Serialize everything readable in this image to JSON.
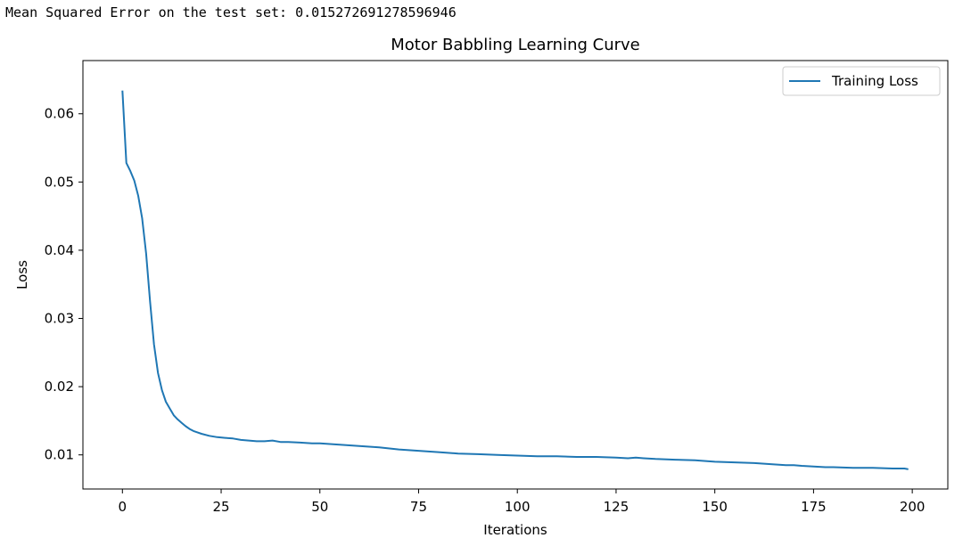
{
  "console": {
    "output": "Mean Squared Error on the test set: 0.015272691278596946"
  },
  "chart_data": {
    "type": "line",
    "title": "Motor Babbling Learning Curve",
    "xlabel": "Iterations",
    "ylabel": "Loss",
    "xlim": [
      -10,
      209
    ],
    "ylim": [
      0.005,
      0.0678
    ],
    "xticks": [
      0,
      25,
      50,
      75,
      100,
      125,
      150,
      175,
      200
    ],
    "yticks": [
      0.01,
      0.02,
      0.03,
      0.04,
      0.05,
      0.06
    ],
    "ytick_labels": [
      "0.01",
      "0.02",
      "0.03",
      "0.04",
      "0.05",
      "0.06"
    ],
    "grid": false,
    "legend_position": "top-right",
    "series": [
      {
        "name": "Training Loss",
        "color": "#1f77b4",
        "x": [
          0,
          1,
          2,
          3,
          4,
          5,
          6,
          7,
          8,
          9,
          10,
          11,
          12,
          13,
          14,
          15,
          16,
          17,
          18,
          19,
          20,
          22,
          24,
          26,
          28,
          30,
          32,
          34,
          36,
          38,
          40,
          42,
          45,
          48,
          50,
          55,
          60,
          65,
          70,
          75,
          80,
          85,
          90,
          95,
          100,
          105,
          110,
          115,
          120,
          125,
          128,
          130,
          132,
          135,
          140,
          145,
          150,
          155,
          160,
          165,
          168,
          170,
          172,
          175,
          178,
          180,
          185,
          190,
          195,
          198,
          199
        ],
        "values": [
          0.0634,
          0.0528,
          0.0516,
          0.0502,
          0.048,
          0.0447,
          0.0395,
          0.0325,
          0.0262,
          0.022,
          0.0195,
          0.0178,
          0.0168,
          0.0158,
          0.0152,
          0.0147,
          0.0142,
          0.0138,
          0.0135,
          0.0133,
          0.0131,
          0.0128,
          0.0126,
          0.0125,
          0.0124,
          0.0122,
          0.0121,
          0.012,
          0.012,
          0.0121,
          0.0119,
          0.0119,
          0.0118,
          0.0117,
          0.0117,
          0.0115,
          0.0113,
          0.0111,
          0.0108,
          0.0106,
          0.0104,
          0.0102,
          0.0101,
          0.01,
          0.0099,
          0.0098,
          0.0098,
          0.0097,
          0.0097,
          0.0096,
          0.0095,
          0.0096,
          0.0095,
          0.0094,
          0.0093,
          0.0092,
          0.009,
          0.0089,
          0.0088,
          0.0086,
          0.0085,
          0.0085,
          0.0084,
          0.0083,
          0.0082,
          0.0082,
          0.0081,
          0.0081,
          0.008,
          0.008,
          0.0079
        ]
      }
    ]
  }
}
